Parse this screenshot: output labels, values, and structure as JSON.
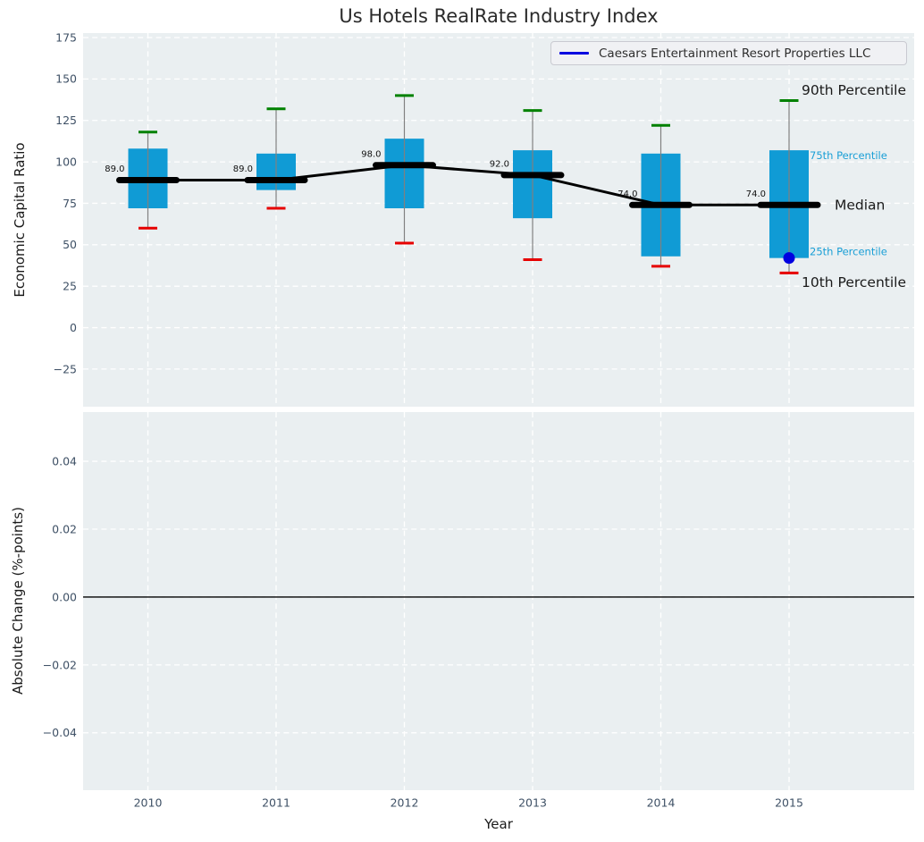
{
  "title": "Us Hotels RealRate Industry Index",
  "legend": {
    "items": [
      {
        "label": "Caesars Entertainment Resort Properties LLC",
        "marker": "line",
        "color": "#0000e0"
      }
    ]
  },
  "axes": {
    "xlabel": "Year",
    "xticks": [
      "2010",
      "2011",
      "2012",
      "2013",
      "2014",
      "2015"
    ],
    "top": {
      "ylabel": "Economic Capital Ratio",
      "ytick_labels": [
        "175",
        "150",
        "125",
        "100",
        "75",
        "50",
        "25",
        "0",
        "−25"
      ],
      "ytick_values": [
        175,
        150,
        125,
        100,
        75,
        50,
        25,
        0,
        -25
      ]
    },
    "bottom": {
      "ylabel": "Absolute Change (%-points)",
      "ytick_labels": [
        "0.04",
        "0.02",
        "0.00",
        "−0.02",
        "−0.04"
      ],
      "ytick_values": [
        0.04,
        0.02,
        0.0,
        -0.02,
        -0.04
      ]
    }
  },
  "annotations": [
    {
      "label": "90th Percentile",
      "color": "#1a1a1a",
      "size": "large"
    },
    {
      "label": "75th Percentile",
      "color": "#1a9fd6",
      "size": "small"
    },
    {
      "label": "Median",
      "color": "#1a1a1a",
      "size": "large"
    },
    {
      "label": "25th Percentile",
      "color": "#1a9fd6",
      "size": "small"
    },
    {
      "label": "10th Percentile",
      "color": "#1a1a1a",
      "size": "large"
    }
  ],
  "colors": {
    "plot_bg": "#eaeff1",
    "grid": "#ffffff",
    "box_fill": "#109bd5",
    "whisker": "#808080",
    "cap_90th": "#008100",
    "cap_10th": "#e60000",
    "median_line": "#000000",
    "company": "#0000e0",
    "tick_label": "#3f5166",
    "zero_line": "#000000"
  },
  "chart_data": [
    {
      "type": "boxplot",
      "title": "Us Hotels RealRate Industry Index",
      "xlabel": "Year",
      "ylabel": "Economic Capital Ratio",
      "categories": [
        "2010",
        "2011",
        "2012",
        "2013",
        "2014",
        "2015"
      ],
      "series": [
        {
          "name": "90th Percentile",
          "values": [
            118,
            132,
            140,
            131,
            122,
            137
          ]
        },
        {
          "name": "75th Percentile",
          "values": [
            108,
            105,
            114,
            107,
            105,
            107
          ]
        },
        {
          "name": "Median",
          "values": [
            89,
            89,
            98,
            92,
            74,
            74
          ]
        },
        {
          "name": "25th Percentile",
          "values": [
            72,
            83,
            72,
            66,
            43,
            42
          ]
        },
        {
          "name": "10th Percentile",
          "values": [
            60,
            72,
            51,
            41,
            37,
            33
          ]
        }
      ],
      "median_labels": [
        "89.0",
        "89.0",
        "98.0",
        "92.0",
        "74.0",
        "74.0"
      ],
      "company_series": {
        "name": "Caesars Entertainment Resort Properties LLC",
        "points": [
          {
            "x": "2015",
            "y": 42
          }
        ]
      },
      "ylim": [
        -48,
        178
      ],
      "yticks": [
        175,
        150,
        125,
        100,
        75,
        50,
        25,
        0,
        -25
      ],
      "grid": true,
      "legend_position": "upper right"
    },
    {
      "type": "line",
      "ylabel": "Absolute Change (%-points)",
      "xlabel": "Year",
      "categories": [
        "2010",
        "2011",
        "2012",
        "2013",
        "2014",
        "2015"
      ],
      "series": [],
      "yticks": [
        0.04,
        0.02,
        0.0,
        -0.02,
        -0.04
      ],
      "ylim": [
        -0.057,
        0.055
      ],
      "zero_line": 0.0,
      "grid": true
    }
  ]
}
